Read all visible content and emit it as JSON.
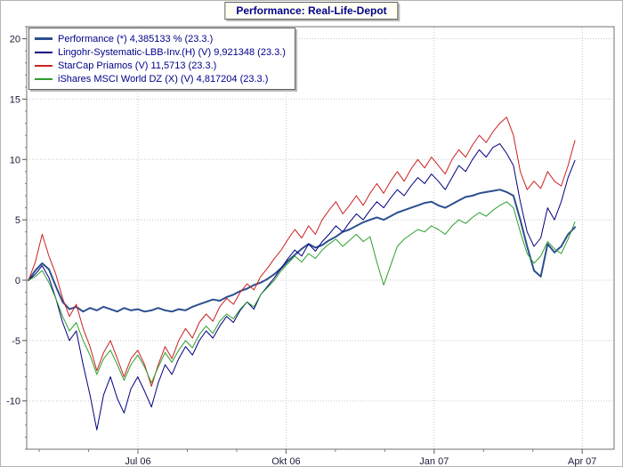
{
  "chart_data": {
    "type": "line",
    "title": "Performance: Real-Life-Depot",
    "x_tick_labels": [
      "Jul 06",
      "Okt 06",
      "Jan 07",
      "Apr 07"
    ],
    "y_ticks": [
      20,
      15,
      10,
      5,
      0,
      -5,
      -10
    ],
    "ylim": [
      -14,
      21
    ],
    "grid": true,
    "legend_position": "top-left",
    "series": [
      {
        "name": "Performance (*) 4,385133 % (23.3.)",
        "color": "#2c4f8f",
        "width": 2,
        "values": [
          0.0,
          0.8,
          1.4,
          0.9,
          -0.5,
          -1.8,
          -2.4,
          -2.2,
          -2.6,
          -2.3,
          -2.5,
          -2.2,
          -2.4,
          -2.6,
          -2.3,
          -2.5,
          -2.4,
          -2.6,
          -2.5,
          -2.3,
          -2.5,
          -2.6,
          -2.4,
          -2.5,
          -2.2,
          -2.0,
          -1.8,
          -1.6,
          -1.7,
          -1.4,
          -1.2,
          -0.9,
          -0.7,
          -0.4,
          -0.2,
          0.1,
          0.5,
          1.0,
          1.6,
          2.1,
          2.6,
          3.0,
          2.7,
          2.9,
          3.3,
          3.6,
          4.0,
          4.2,
          4.5,
          4.8,
          5.0,
          5.2,
          5.0,
          5.3,
          5.6,
          5.8,
          6.0,
          6.2,
          6.4,
          6.5,
          6.2,
          6.0,
          6.3,
          6.6,
          6.9,
          7.0,
          7.2,
          7.3,
          7.4,
          7.5,
          7.3,
          7.0,
          5.0,
          2.8,
          0.8,
          0.3,
          3.0,
          2.3,
          2.8,
          3.8,
          4.39
        ]
      },
      {
        "name": "Lingohr-Systematic-LBB-Inv.(H) (V) 9,921348 (23.3.)",
        "color": "#000080",
        "width": 1,
        "values": [
          0.0,
          0.5,
          1.2,
          0.2,
          -1.5,
          -3.5,
          -5.0,
          -4.2,
          -7.0,
          -9.5,
          -12.4,
          -9.5,
          -8.0,
          -9.8,
          -11.0,
          -9.0,
          -8.0,
          -9.2,
          -10.5,
          -8.5,
          -7.0,
          -7.8,
          -6.5,
          -5.5,
          -6.2,
          -5.0,
          -4.2,
          -4.8,
          -3.8,
          -3.0,
          -3.5,
          -2.5,
          -1.8,
          -2.4,
          -1.2,
          -0.5,
          0.2,
          1.0,
          1.8,
          2.5,
          2.0,
          3.0,
          2.4,
          3.2,
          3.8,
          4.5,
          4.0,
          4.8,
          5.5,
          5.0,
          5.8,
          6.5,
          6.0,
          6.8,
          7.5,
          7.0,
          7.8,
          8.5,
          8.0,
          8.8,
          8.2,
          7.5,
          8.5,
          9.5,
          9.0,
          10.0,
          10.8,
          10.2,
          11.0,
          11.3,
          10.5,
          9.5,
          6.5,
          4.0,
          2.8,
          3.5,
          6.0,
          5.0,
          6.5,
          8.5,
          9.92
        ]
      },
      {
        "name": "StarCap Priamos (V) 11,5713 (23.3.)",
        "color": "#cc2222",
        "width": 1,
        "values": [
          0.0,
          1.5,
          3.8,
          2.0,
          0.5,
          -1.5,
          -3.0,
          -2.0,
          -4.0,
          -5.5,
          -7.5,
          -6.0,
          -5.0,
          -6.5,
          -8.0,
          -6.5,
          -5.8,
          -7.0,
          -8.8,
          -7.0,
          -5.5,
          -6.5,
          -5.0,
          -4.0,
          -4.8,
          -3.5,
          -2.8,
          -3.4,
          -2.2,
          -1.5,
          -2.0,
          -1.0,
          -0.3,
          -0.8,
          0.3,
          1.0,
          1.8,
          2.5,
          3.4,
          4.2,
          3.5,
          4.5,
          3.8,
          5.0,
          5.8,
          6.5,
          5.5,
          6.2,
          7.0,
          6.2,
          7.2,
          8.0,
          7.2,
          8.2,
          9.0,
          8.2,
          9.2,
          10.0,
          9.3,
          10.2,
          9.5,
          8.8,
          10.0,
          10.8,
          10.2,
          11.2,
          12.0,
          11.4,
          12.3,
          13.0,
          13.5,
          12.0,
          9.0,
          7.5,
          8.2,
          7.6,
          9.0,
          8.2,
          7.8,
          9.5,
          11.57
        ]
      },
      {
        "name": "iShares MSCI World DZ (X) (V) 4,817204 (23.3.)",
        "color": "#2e9e2e",
        "width": 1,
        "values": [
          0.0,
          0.3,
          0.8,
          -0.2,
          -1.5,
          -3.0,
          -4.2,
          -3.5,
          -5.0,
          -6.2,
          -7.8,
          -6.5,
          -5.8,
          -7.0,
          -8.3,
          -7.0,
          -6.2,
          -7.2,
          -8.5,
          -7.2,
          -6.0,
          -6.8,
          -5.8,
          -5.0,
          -5.6,
          -4.5,
          -3.8,
          -4.4,
          -3.4,
          -2.8,
          -3.2,
          -2.4,
          -1.8,
          -2.2,
          -1.2,
          -0.6,
          0.0,
          0.8,
          1.4,
          2.0,
          1.5,
          2.2,
          1.8,
          2.5,
          3.0,
          3.4,
          2.8,
          3.3,
          3.8,
          3.2,
          3.6,
          1.5,
          -0.4,
          1.2,
          2.8,
          3.4,
          3.8,
          4.2,
          4.0,
          4.5,
          4.2,
          3.8,
          4.5,
          5.0,
          4.7,
          5.2,
          5.6,
          5.3,
          5.8,
          6.2,
          6.5,
          6.0,
          4.0,
          2.2,
          1.4,
          2.0,
          3.2,
          2.6,
          2.2,
          3.4,
          4.82
        ]
      }
    ]
  }
}
